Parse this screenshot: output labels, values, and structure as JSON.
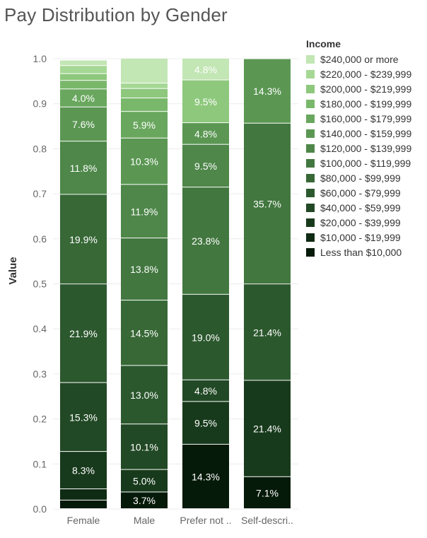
{
  "chart_data": {
    "type": "bar",
    "stacked": true,
    "title": "Pay Distribution by Gender",
    "xlabel": "",
    "ylabel": "Value",
    "ylim": [
      0,
      1.0
    ],
    "y_ticks": [
      "0.0",
      "0.1",
      "0.2",
      "0.3",
      "0.4",
      "0.5",
      "0.6",
      "0.7",
      "0.8",
      "0.9",
      "1.0"
    ],
    "categories": [
      "Female",
      "Male",
      "Prefer not ..",
      "Self-descri.."
    ],
    "grid": "horizontal",
    "legend": {
      "title": "Income",
      "position": "right",
      "items": [
        {
          "label": "$240,000 or more",
          "color": "#c2e6b4"
        },
        {
          "label": "$220,000 - $239,999",
          "color": "#a6d895"
        },
        {
          "label": "$200,000 - $219,999",
          "color": "#8dc87c"
        },
        {
          "label": "$180,000 - $199,999",
          "color": "#79b86b"
        },
        {
          "label": "$160,000 - $179,999",
          "color": "#69a75e"
        },
        {
          "label": "$140,000 - $159,999",
          "color": "#5b9753"
        },
        {
          "label": "$120,000 - $139,999",
          "color": "#4e8749"
        },
        {
          "label": "$100,000 - $119,999",
          "color": "#42773f"
        },
        {
          "label": "$80,000 - $99,999",
          "color": "#376836"
        },
        {
          "label": "$60,000 - $79,999",
          "color": "#2c582e"
        },
        {
          "label": "$40,000 - $59,999",
          "color": "#224925"
        },
        {
          "label": "$20,000 - $39,999",
          "color": "#183a1c"
        },
        {
          "label": "$10,000 - $19,999",
          "color": "#0f2b13"
        },
        {
          "label": "Less than $10,000",
          "color": "#061a09"
        }
      ]
    },
    "series": [
      {
        "name": "Less than $10,000",
        "values": [
          0.019,
          0.037,
          0.143,
          0.071
        ]
      },
      {
        "name": "$10,000 - $19,999",
        "values": [
          0.025,
          0.0,
          0.0,
          0.0
        ]
      },
      {
        "name": "$20,000 - $39,999",
        "values": [
          0.083,
          0.05,
          0.095,
          0.214
        ]
      },
      {
        "name": "$40,000 - $59,999",
        "values": [
          0.153,
          0.101,
          0.048,
          0.0
        ]
      },
      {
        "name": "$60,000 - $79,999",
        "values": [
          0.219,
          0.13,
          0.19,
          0.214
        ]
      },
      {
        "name": "$80,000 - $99,999",
        "values": [
          0.199,
          0.145,
          0.0,
          0.0
        ]
      },
      {
        "name": "$100,000 - $119,999",
        "values": [
          0.0,
          0.138,
          0.238,
          0.357
        ]
      },
      {
        "name": "$120,000 - $139,999",
        "values": [
          0.118,
          0.119,
          0.095,
          0.0
        ]
      },
      {
        "name": "$140,000 - $159,999",
        "values": [
          0.076,
          0.103,
          0.048,
          0.143
        ]
      },
      {
        "name": "$160,000 - $179,999",
        "values": [
          0.04,
          0.059,
          0.0,
          0.0
        ]
      },
      {
        "name": "$180,000 - $199,999",
        "values": [
          0.019,
          0.03,
          0.0,
          0.0
        ]
      },
      {
        "name": "$200,000 - $219,999",
        "values": [
          0.015,
          0.021,
          0.095,
          0.0
        ]
      },
      {
        "name": "$220,000 - $239,999",
        "values": [
          0.018,
          0.012,
          0.0,
          0.0
        ]
      },
      {
        "name": "$240,000 or more",
        "values": [
          0.012,
          0.055,
          0.048,
          0.0
        ]
      }
    ],
    "data_labels": [
      [
        "",
        "",
        "8.3%",
        "15.3%",
        "21.9%",
        "19.9%",
        "",
        "11.8%",
        "7.6%",
        "4.0%",
        "",
        "",
        "",
        ""
      ],
      [
        "3.7%",
        "",
        "5.0%",
        "10.1%",
        "13.0%",
        "14.5%",
        "13.8%",
        "11.9%",
        "10.3%",
        "5.9%",
        "",
        "",
        "",
        ""
      ],
      [
        "14.3%",
        "",
        "9.5%",
        "4.8%",
        "19.0%",
        "",
        "23.8%",
        "9.5%",
        "4.8%",
        "",
        "",
        "9.5%",
        "",
        "4.8%"
      ],
      [
        "7.1%",
        "",
        "21.4%",
        "",
        "21.4%",
        "",
        "35.7%",
        "",
        "14.3%",
        "",
        "",
        "",
        "",
        ""
      ]
    ]
  }
}
